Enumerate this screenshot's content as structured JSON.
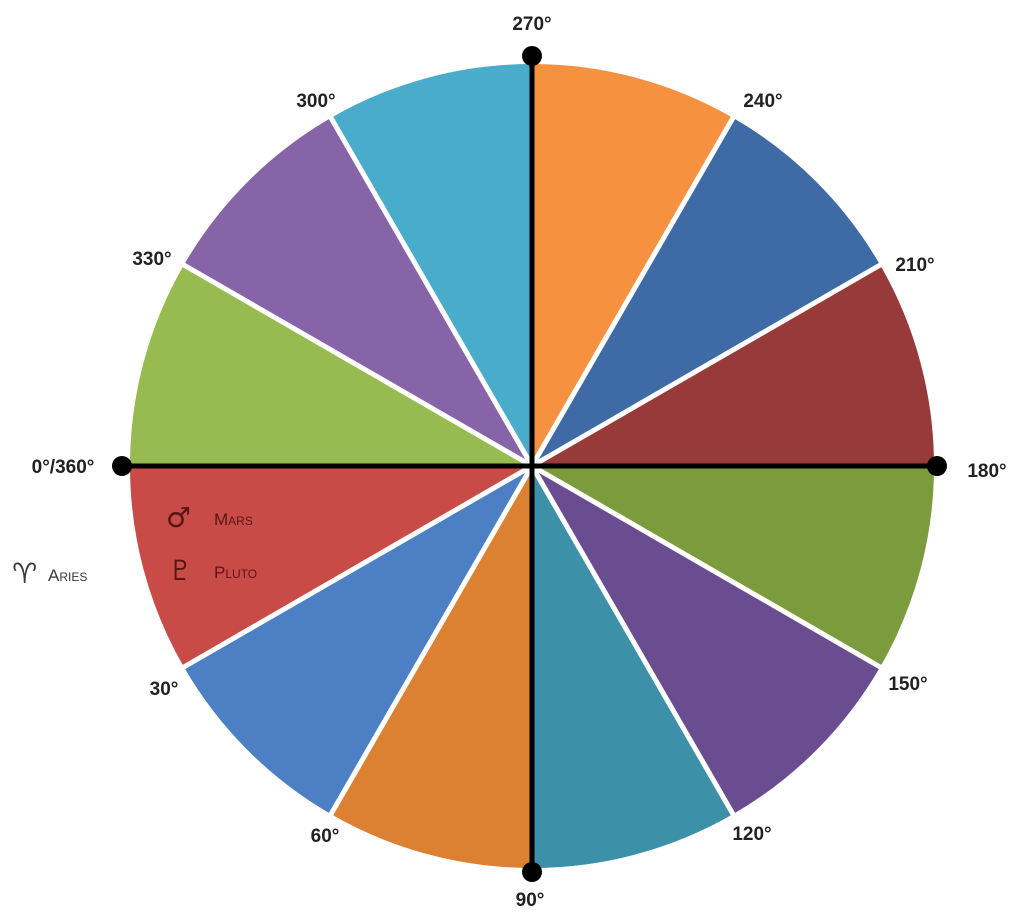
{
  "wheel": {
    "segments": [
      {
        "label": "Aries",
        "color": "#c94b47"
      },
      {
        "label": "",
        "color": "#4c7fc4"
      },
      {
        "label": "",
        "color": "#db8131"
      },
      {
        "label": "",
        "color": "#3c90a8"
      },
      {
        "label": "",
        "color": "#6a4d90"
      },
      {
        "label": "",
        "color": "#7b9b3c"
      },
      {
        "label": "",
        "color": "#983a39"
      },
      {
        "label": "",
        "color": "#3e6aa5"
      },
      {
        "label": "",
        "color": "#f5913f"
      },
      {
        "label": "",
        "color": "#4aaccb"
      },
      {
        "label": "",
        "color": "#8763a8"
      },
      {
        "label": "",
        "color": "#97bb50"
      }
    ],
    "degree_labels": [
      {
        "deg": 0,
        "text": "0°/360°"
      },
      {
        "deg": 30,
        "text": "30°"
      },
      {
        "deg": 60,
        "text": "60°"
      },
      {
        "deg": 90,
        "text": "90°"
      },
      {
        "deg": 120,
        "text": "120°"
      },
      {
        "deg": 150,
        "text": "150°"
      },
      {
        "deg": 180,
        "text": "180°"
      },
      {
        "deg": 210,
        "text": "210°"
      },
      {
        "deg": 240,
        "text": "240°"
      },
      {
        "deg": 270,
        "text": "270°"
      },
      {
        "deg": 300,
        "text": "300°"
      },
      {
        "deg": 330,
        "text": "330°"
      }
    ],
    "sign": {
      "symbol": "♈",
      "name": "Aries",
      "color": "#3a3a3a"
    },
    "rulers": [
      {
        "symbol": "♂",
        "name": "Mars"
      },
      {
        "symbol": "♇",
        "name": "Pluto"
      }
    ],
    "ruler_color": "#5a1414",
    "divider_color": "#ffffff",
    "axis_color": "#000000"
  }
}
